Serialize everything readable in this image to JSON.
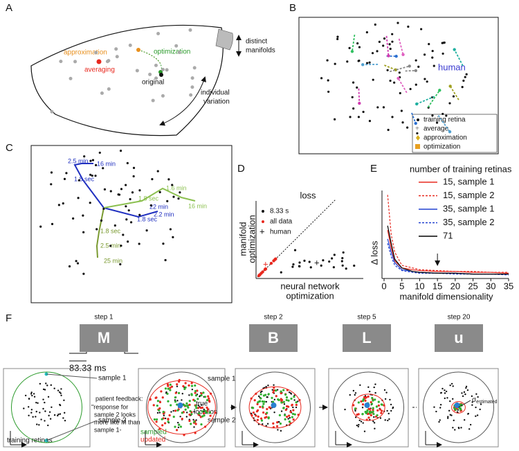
{
  "panels": {
    "A": {
      "label": "A",
      "approximation": "approximation",
      "optimization": "optimization",
      "averaging": "averaging",
      "original": "original",
      "manifolds": [
        "distinct",
        "manifolds"
      ],
      "variation": [
        "individual",
        "variation"
      ]
    },
    "B": {
      "label": "B",
      "human": "human",
      "legend": [
        "training retina",
        "average",
        "approximation",
        "optimization"
      ]
    },
    "C": {
      "label": "C",
      "times": [
        "2.5 min",
        "16 min",
        "1.8 sec",
        "1.6 min",
        "1.8 sec",
        "16 min",
        "22 min",
        "2.2 min",
        "1.8 sec",
        "1.8 sec",
        "2.5 min",
        "25 min"
      ]
    },
    "D": {
      "label": "D",
      "title": "loss",
      "ylabel": [
        "manifold",
        "optimization"
      ],
      "xlabel": [
        "neural network",
        "optimization"
      ],
      "legend": [
        "8.33 s",
        "all data",
        "human"
      ]
    },
    "F": {
      "label": "F",
      "steps": [
        {
          "step": "step 1",
          "letter": "M"
        },
        {
          "step": "step 2",
          "letter": "B"
        },
        {
          "step": "step 5",
          "letter": "L"
        },
        {
          "step": "step 20",
          "letter": "u"
        }
      ],
      "duration": "83.33 ms",
      "sample1": "sample 1",
      "sample2": "sample 2",
      "training": "training retinas",
      "feedback": [
        "patient feedback:",
        "\"response for",
        "sample 2 looks",
        "more like  M than",
        "sample 1-"
      ],
      "true_location": [
        "true",
        "location"
      ],
      "sampled": "sampled",
      "updated": "updated",
      "sigma": "σ",
      "sigma_sub": "estimated"
    }
  },
  "chart_data": {
    "type": "line",
    "label": "E",
    "xlabel": "manifold dimensionality",
    "ylabel": "Δ loss",
    "legend_title": "number of training retinas",
    "x": [
      1,
      2,
      3,
      5,
      8,
      10,
      15,
      20,
      25,
      30,
      35
    ],
    "series": [
      {
        "name": "15, sample 1",
        "color": "#e8281e",
        "dash": false,
        "values": [
          0.55,
          0.35,
          0.2,
          0.12,
          0.1,
          0.09,
          0.08,
          0.08,
          0.07,
          0.07,
          0.06
        ]
      },
      {
        "name": "15, sample 2",
        "color": "#e8281e",
        "dash": true,
        "values": [
          0.95,
          0.5,
          0.3,
          0.15,
          0.12,
          0.1,
          0.09,
          0.08,
          0.08,
          0.07,
          0.07
        ]
      },
      {
        "name": "35, sample 1",
        "color": "#2040d0",
        "dash": false,
        "values": [
          0.45,
          0.3,
          0.18,
          0.1,
          0.08,
          0.07,
          0.06,
          0.06,
          0.05,
          0.05,
          0.05
        ]
      },
      {
        "name": "35, sample 2",
        "color": "#2040d0",
        "dash": true,
        "values": [
          0.4,
          0.25,
          0.15,
          0.09,
          0.07,
          0.06,
          0.06,
          0.05,
          0.05,
          0.05,
          0.04
        ]
      },
      {
        "name": "71",
        "color": "#000000",
        "dash": false,
        "values": [
          0.6,
          0.4,
          0.22,
          0.12,
          0.08,
          0.07,
          0.06,
          0.06,
          0.05,
          0.05,
          0.05
        ]
      }
    ],
    "xlim": [
      0,
      35
    ],
    "ylim": [
      0,
      1
    ],
    "xticks": [
      0,
      5,
      10,
      15,
      20,
      25,
      30,
      35
    ]
  }
}
